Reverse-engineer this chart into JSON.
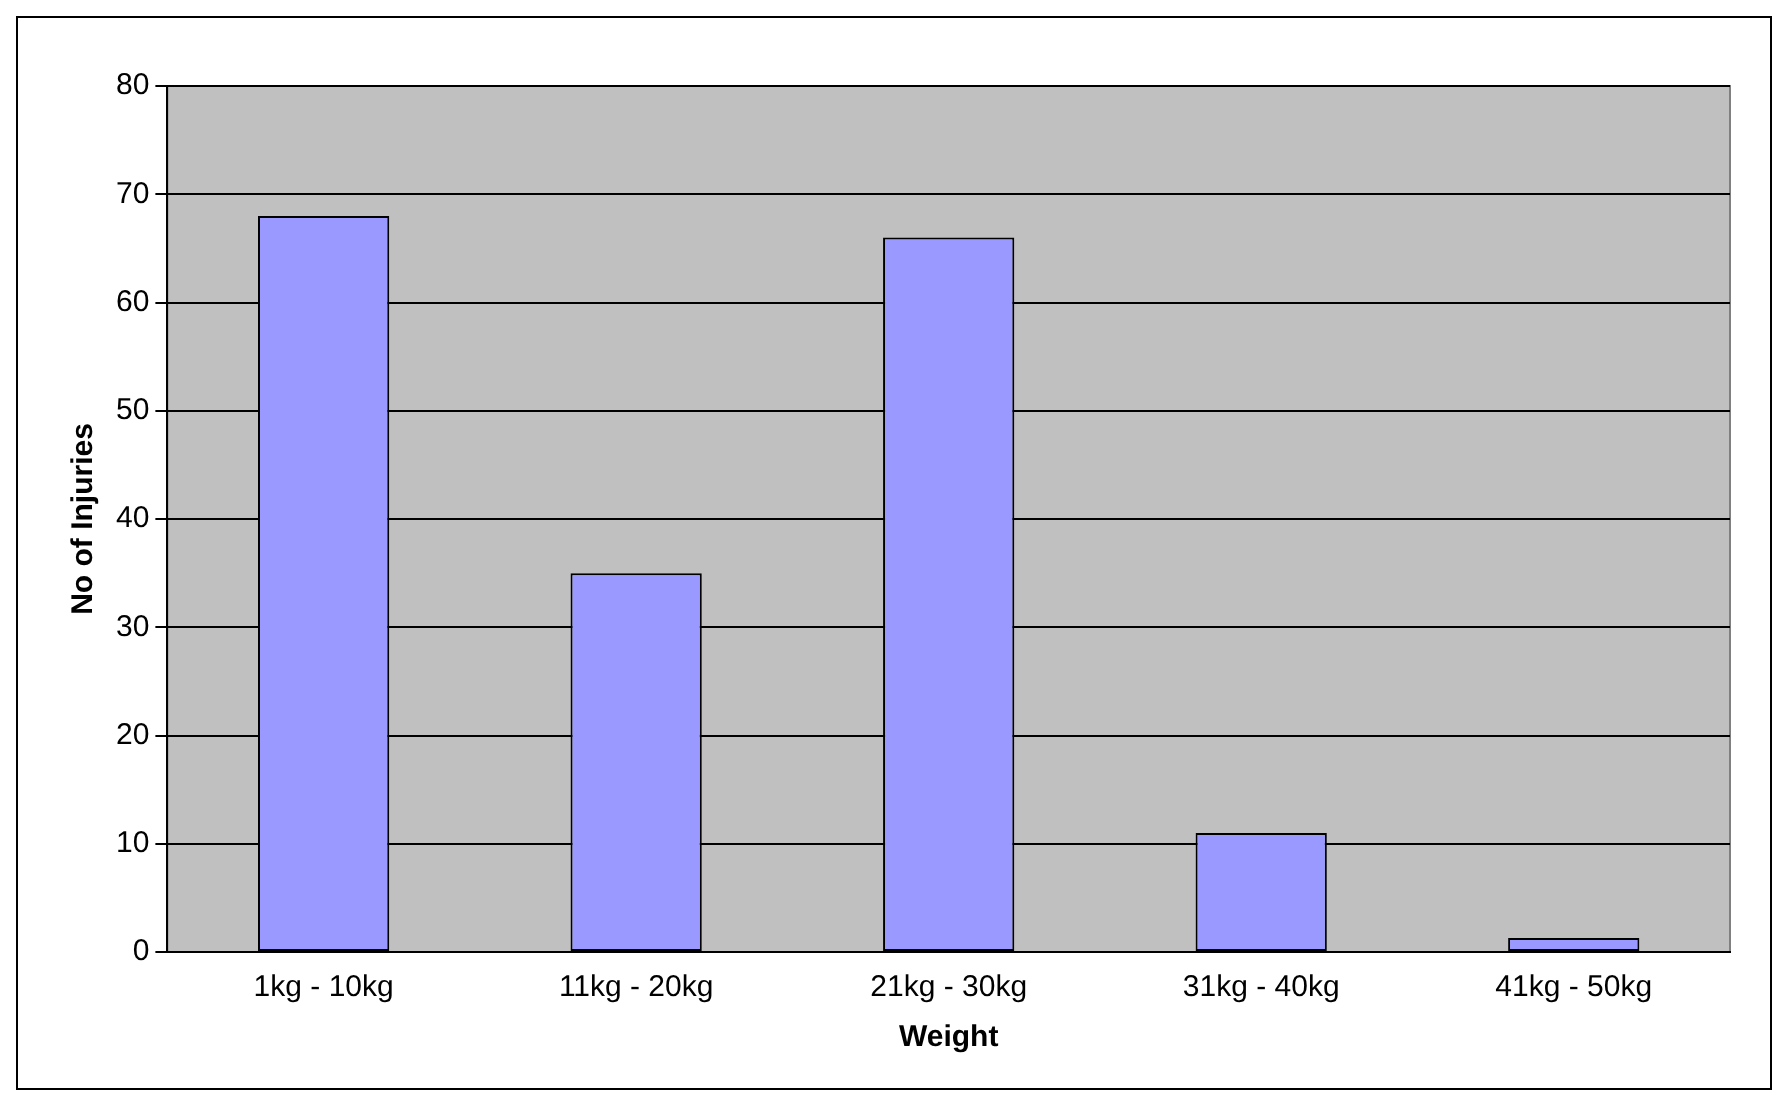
{
  "chart_data": {
    "type": "bar",
    "xlabel": "Weight",
    "ylabel": "No of Injuries",
    "categories": [
      "1kg - 10kg",
      "11kg - 20kg",
      "21kg - 30kg",
      "31kg - 40kg",
      "41kg - 50kg"
    ],
    "values": [
      68,
      35,
      66,
      11,
      1.3
    ],
    "color": "#9999ff",
    "ylim": [
      0,
      80
    ],
    "yticks": [
      0,
      10,
      20,
      30,
      40,
      50,
      60,
      70,
      80
    ],
    "grid": "y",
    "legend": false
  }
}
